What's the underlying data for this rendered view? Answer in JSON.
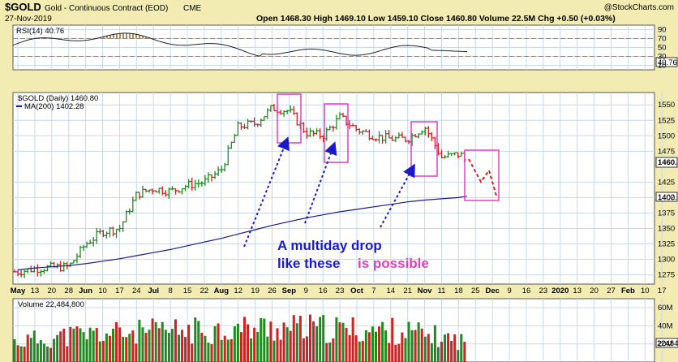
{
  "header": {
    "symbol": "$GOLD",
    "description": "Gold - Continuous Contract (EOD)",
    "exchange": "CME",
    "date": "27-Nov-2019",
    "watermark": "@StockCharts.com",
    "ohlc": "Open 1468.30  High 1469.10  Low 1459.10  Close 1460.80  Volume 22.5M  Chg +0.50 (+0.03%)"
  },
  "rsi": {
    "label": "RSI(14) 40.76",
    "ticks": [
      "90",
      "70",
      "50",
      "30",
      "10"
    ],
    "current_label": "40.76"
  },
  "price": {
    "legend_main": "$GOLD (Daily) 1460.80",
    "legend_ma": "MA(200) 1402.28",
    "ticks": [
      "1550",
      "1525",
      "1500",
      "1475",
      "1425",
      "1400",
      "1375",
      "1350",
      "1325",
      "1300",
      "1275"
    ],
    "last_label": "1460.",
    "ma_label": "1402."
  },
  "annotation": {
    "line1": "A multiday drop",
    "line2a": "like these",
    "line2b": "is possible"
  },
  "xaxis": {
    "labels": [
      "May",
      "13",
      "20",
      "28",
      "Jun",
      "10",
      "17",
      "24",
      "Jul",
      "8",
      "15",
      "22",
      "Aug",
      "12",
      "19",
      "26",
      "Sep",
      "9",
      "16",
      "23",
      "Oct",
      "7",
      "14",
      "21",
      "Nov",
      "11",
      "18",
      "25",
      "Dec",
      "9",
      "16",
      "23",
      "2020",
      "13",
      "20",
      "27",
      "Feb",
      "10",
      "17"
    ]
  },
  "volume": {
    "label": "Volume 22,484,800",
    "ticks": [
      "60M",
      "40M",
      "20M"
    ],
    "current_label": "22484"
  },
  "colors": {
    "up": "#1f8a1f",
    "down": "#cc2222",
    "ma": "#1a1a8c",
    "arrow": "#1a1acc",
    "box": "#e040c0",
    "panel_bg": "#ffffff",
    "frame_bg": "#f2ecb3"
  },
  "chart_data": [
    {
      "type": "line",
      "title": "RSI(14) 40.76",
      "x": [
        "May",
        "Jun",
        "Jul",
        "Aug",
        "Sep",
        "Oct",
        "Nov",
        "25"
      ],
      "series": [
        {
          "name": "RSI(14)",
          "values": [
            58,
            63,
            72,
            76,
            78,
            55,
            47,
            40.76
          ]
        }
      ],
      "ylim": [
        0,
        100
      ],
      "grid": true
    },
    {
      "type": "line",
      "title": "$GOLD (Daily) 1460.80",
      "x": [
        "May",
        "13",
        "20",
        "28",
        "Jun",
        "10",
        "17",
        "24",
        "Jul",
        "8",
        "15",
        "22",
        "Aug",
        "12",
        "19",
        "26",
        "Sep",
        "9",
        "16",
        "23",
        "Oct",
        "7",
        "14",
        "21",
        "Nov",
        "11",
        "18",
        "25"
      ],
      "series": [
        {
          "name": "$GOLD (Daily)",
          "values": [
            1280,
            1285,
            1287,
            1288,
            1325,
            1345,
            1350,
            1405,
            1415,
            1410,
            1420,
            1425,
            1445,
            1515,
            1520,
            1545,
            1540,
            1505,
            1500,
            1530,
            1510,
            1500,
            1495,
            1495,
            1515,
            1465,
            1470,
            1460.8
          ]
        },
        {
          "name": "MA(200)",
          "values": [
            1283,
            1286,
            1288,
            1290,
            1293,
            1297,
            1301,
            1306,
            1311,
            1316,
            1322,
            1328,
            1334,
            1341,
            1348,
            1355,
            1361,
            1367,
            1372,
            1377,
            1381,
            1385,
            1389,
            1393,
            1396,
            1398,
            1400,
            1402.28
          ]
        }
      ],
      "ylim": [
        1260,
        1570
      ],
      "grid": true
    },
    {
      "type": "bar",
      "title": "Volume 22,484,800",
      "x": [
        "May",
        "Jun",
        "Jul",
        "Aug",
        "Sep",
        "Oct",
        "Nov",
        "25"
      ],
      "series": [
        {
          "name": "Volume",
          "values": [
            22,
            30,
            33,
            35,
            38,
            36,
            34,
            22.48
          ]
        }
      ],
      "ylim": [
        0,
        70
      ],
      "ylabel": "M"
    }
  ]
}
